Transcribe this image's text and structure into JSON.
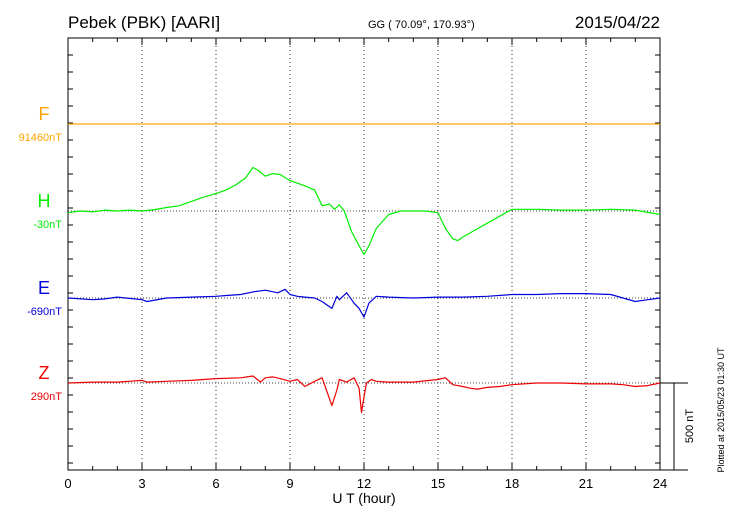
{
  "chart_data": {
    "type": "line",
    "title": "Pebek (PBK)  [AARI]",
    "coordinates": "GG ( 70.09°, 170.93°)",
    "date": "2015/04/22",
    "xlabel": "U T (hour)",
    "xlim": [
      0,
      24
    ],
    "x_ticks": [
      "0",
      "3",
      "6",
      "9",
      "12",
      "15",
      "18",
      "21",
      "24"
    ],
    "scale_label": "500 nT",
    "scale_value_nT": 500,
    "plotted_note": "Plotted at 2015/05/23 01:30 UT",
    "series": [
      {
        "name": "F",
        "baseline_label": "91460nT",
        "color": "#ffa500",
        "x": [
          0,
          24
        ],
        "values": [
          0,
          0
        ]
      },
      {
        "name": "H",
        "baseline_label": "-30nT",
        "color": "#00ee00",
        "x": [
          0,
          0.5,
          1,
          1.5,
          2,
          2.5,
          3,
          3.5,
          4,
          4.5,
          5,
          5.5,
          6,
          6.4,
          6.8,
          7.2,
          7.5,
          7.7,
          8,
          8.3,
          8.6,
          9,
          9.3,
          9.6,
          10,
          10.3,
          10.6,
          10.8,
          11,
          11.2,
          11.5,
          11.8,
          12,
          12.2,
          12.5,
          13,
          13.5,
          14,
          14.5,
          15,
          15.3,
          15.6,
          15.8,
          16,
          16.5,
          17,
          17.5,
          18,
          19,
          20,
          21,
          22,
          23,
          24
        ],
        "values": [
          -10,
          0,
          -5,
          5,
          0,
          5,
          0,
          8,
          20,
          30,
          55,
          80,
          100,
          120,
          150,
          190,
          250,
          235,
          200,
          215,
          210,
          175,
          160,
          145,
          120,
          30,
          40,
          10,
          35,
          0,
          -120,
          -200,
          -250,
          -200,
          -100,
          -20,
          0,
          0,
          0,
          -10,
          -100,
          -160,
          -170,
          -150,
          -110,
          -70,
          -30,
          10,
          10,
          5,
          5,
          10,
          5,
          -20
        ]
      },
      {
        "name": "E",
        "baseline_label": "-690nT",
        "color": "#0000dd",
        "x": [
          0,
          1,
          1.5,
          2,
          3,
          3.2,
          4,
          5,
          6,
          6.5,
          7,
          7.5,
          8,
          8.5,
          8.8,
          9,
          9.3,
          9.6,
          10,
          10.3,
          10.5,
          10.7,
          10.9,
          11,
          11.3,
          11.6,
          11.8,
          12,
          12.2,
          12.5,
          13,
          14,
          15,
          16,
          17,
          18,
          19,
          20,
          21,
          22,
          22.5,
          23,
          23.5,
          24
        ],
        "values": [
          0,
          -10,
          -5,
          5,
          -10,
          -20,
          0,
          5,
          10,
          15,
          20,
          35,
          45,
          30,
          50,
          20,
          10,
          5,
          0,
          -20,
          -40,
          -60,
          10,
          -10,
          30,
          -30,
          -60,
          -110,
          -30,
          10,
          5,
          0,
          5,
          5,
          10,
          20,
          20,
          25,
          25,
          20,
          0,
          -20,
          -10,
          0
        ]
      },
      {
        "name": "Z",
        "baseline_label": "290nT",
        "color": "#ee0000",
        "x": [
          0,
          1,
          2,
          2.5,
          3,
          3.2,
          4,
          5,
          6,
          7,
          7.5,
          7.8,
          8,
          8.3,
          8.6,
          9,
          9.3,
          9.6,
          10,
          10.3,
          10.5,
          10.7,
          10.9,
          11,
          11.3,
          11.6,
          11.8,
          11.9,
          12,
          12.1,
          12.3,
          12.5,
          13,
          14,
          15,
          15.3,
          15.6,
          16,
          16.3,
          16.6,
          17,
          17.5,
          18,
          19,
          20,
          21,
          22,
          22.5,
          23,
          23.5,
          24
        ],
        "values": [
          0,
          5,
          5,
          10,
          15,
          5,
          10,
          15,
          25,
          30,
          40,
          5,
          30,
          35,
          25,
          10,
          20,
          -20,
          10,
          30,
          -50,
          -130,
          -40,
          20,
          5,
          30,
          -30,
          -170,
          -80,
          0,
          20,
          10,
          5,
          5,
          20,
          30,
          -10,
          -20,
          -30,
          -35,
          -25,
          -20,
          -10,
          0,
          0,
          -5,
          -5,
          -10,
          -20,
          -15,
          0
        ]
      }
    ]
  }
}
